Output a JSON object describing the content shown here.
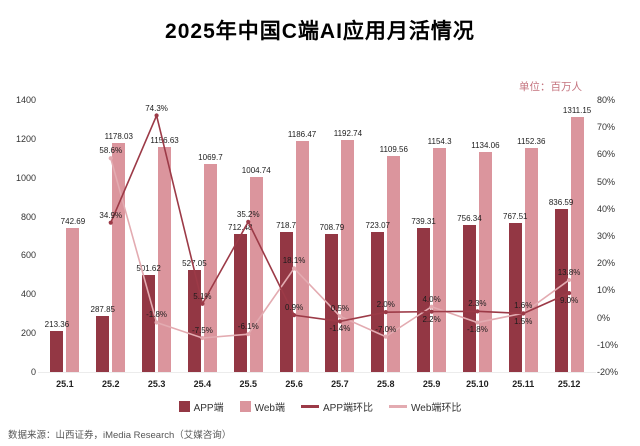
{
  "title": "2025年中国C端AI应用月活情况",
  "unit_label": "单位：百万人",
  "source": "数据来源：山西证券，iMedia Research（艾媒咨询）",
  "colors": {
    "app_bar": "#933744",
    "web_bar": "#db959d",
    "app_line": "#9c3a47",
    "web_line": "#e3abb1",
    "unit_text": "#c4737e"
  },
  "legend": [
    {
      "label": "APP端",
      "type": "bar",
      "color": "#933744"
    },
    {
      "label": "Web端",
      "type": "bar",
      "color": "#db959d"
    },
    {
      "label": "APP端环比",
      "type": "line",
      "color": "#9c3a47"
    },
    {
      "label": "Web端环比",
      "type": "line",
      "color": "#e3abb1"
    }
  ],
  "chart_data": {
    "type": "combo-bar-line",
    "title": "2025年中国C端AI应用月活情况",
    "unit": "单位：百万人",
    "categories": [
      "25.1",
      "25.2",
      "25.3",
      "25.4",
      "25.5",
      "25.6",
      "25.7",
      "25.8",
      "25.9",
      "25.10",
      "25.11",
      "25.12"
    ],
    "series": [
      {
        "name": "APP端",
        "kind": "bar",
        "axis": "left",
        "color": "#933744",
        "values": [
          213.36,
          287.85,
          501.62,
          527.05,
          712.48,
          718.7,
          708.79,
          723.07,
          739.31,
          756.34,
          767.51,
          836.59
        ],
        "labels": [
          "213.36",
          "287.85",
          "501.62",
          "527.05",
          "712.48",
          "718.7",
          "708.79",
          "723.07",
          "739.31",
          "756.34",
          "767.51",
          "836.59"
        ]
      },
      {
        "name": "Web端",
        "kind": "bar",
        "axis": "left",
        "color": "#db959d",
        "values": [
          742.69,
          1178.03,
          1156.63,
          1069.7,
          1004.74,
          1186.47,
          1192.74,
          1109.56,
          1154.3,
          1134.06,
          1152.36,
          1311.15
        ],
        "labels": [
          "742.69",
          "1178.03",
          "1156.63",
          "1069.7",
          "1004.74",
          "1186.47",
          "1192.74",
          "1109.56",
          "1154.3",
          "1134.06",
          "1152.36",
          "1311.15"
        ]
      },
      {
        "name": "APP端环比",
        "kind": "line",
        "axis": "right",
        "color": "#9c3a47",
        "values": [
          null,
          34.9,
          74.3,
          5.1,
          35.2,
          0.9,
          -1.4,
          2.0,
          2.2,
          2.3,
          1.5,
          9.0
        ],
        "labels": [
          "",
          "34.9%",
          "74.3%",
          "5.1%",
          "35.2%",
          "0.9%",
          "-1.4%",
          "2.0%",
          "2.2%",
          "2.3%",
          "1.5%",
          "9.0%"
        ]
      },
      {
        "name": "Web端环比",
        "kind": "line",
        "axis": "right",
        "color": "#e3abb1",
        "values": [
          null,
          58.6,
          -1.8,
          -7.5,
          -6.1,
          18.1,
          0.5,
          -7.0,
          4.0,
          -1.8,
          1.6,
          13.8
        ],
        "labels": [
          "",
          "58.6%",
          "-1.8%",
          "-7.5%",
          "-6.1%",
          "18.1%",
          "0.5%",
          "-7.0%",
          "4.0%",
          "-1.8%",
          "1.6%",
          "13.8%"
        ]
      }
    ],
    "left_axis": {
      "min": 0,
      "max": 1400,
      "ticks": [
        0,
        200,
        400,
        600,
        800,
        1000,
        1200,
        1400
      ]
    },
    "right_axis": {
      "min": -20,
      "max": 80,
      "ticks": [
        -20,
        -10,
        0,
        10,
        20,
        30,
        40,
        50,
        60,
        70,
        80
      ],
      "tick_suffix": "%"
    },
    "grid": false,
    "legend_position": "bottom"
  }
}
